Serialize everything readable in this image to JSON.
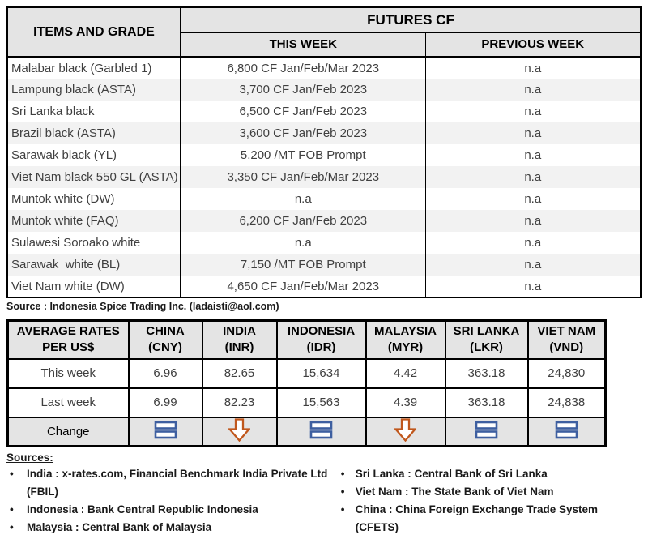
{
  "futures_table": {
    "items_header": "ITEMS AND GRADE",
    "group_header": "FUTURES CF",
    "subheaders": {
      "this_week": "THIS WEEK",
      "previous_week": "PREVIOUS WEEK"
    },
    "rows": [
      {
        "item": "Malabar black (Garbled 1)",
        "this_week": "6,800 CF Jan/Feb/Mar 2023",
        "previous_week": "n.a"
      },
      {
        "item": "Lampung black (ASTA)",
        "this_week": "3,700 CF Jan/Feb 2023",
        "previous_week": "n.a"
      },
      {
        "item": "Sri Lanka black",
        "this_week": "6,500 CF Jan/Feb 2023",
        "previous_week": "n.a"
      },
      {
        "item": "Brazil black (ASTA)",
        "this_week": "3,600 CF Jan/Feb 2023",
        "previous_week": "n.a"
      },
      {
        "item": "Sarawak black (YL)",
        "this_week": "5,200 /MT FOB Prompt",
        "previous_week": "n.a"
      },
      {
        "item": "Viet Nam black 550 GL (ASTA)",
        "this_week": "3,350 CF Jan/Feb/Mar 2023",
        "previous_week": "n.a"
      },
      {
        "item": "Muntok white (DW)",
        "this_week": "n.a",
        "previous_week": "n.a"
      },
      {
        "item": "Muntok white (FAQ)",
        "this_week": "6,200 CF Jan/Feb 2023",
        "previous_week": "n.a"
      },
      {
        "item": "Sulawesi Soroako white",
        "this_week": "n.a",
        "previous_week": "n.a"
      },
      {
        "item": "Sarawak  white (BL)",
        "this_week": "7,150 /MT FOB Prompt",
        "previous_week": "n.a"
      },
      {
        "item": "Viet Nam white (DW)",
        "this_week": "4,650 CF Jan/Feb/Mar 2023",
        "previous_week": "n.a"
      }
    ],
    "source": "Source : Indonesia Spice Trading Inc. (ladaisti@aol.com)"
  },
  "rates_table": {
    "row_header": {
      "line1": "AVERAGE RATES",
      "line2": "PER US$"
    },
    "columns": [
      {
        "name": "CHINA",
        "code": "(CNY)"
      },
      {
        "name": "INDIA",
        "code": "(INR)"
      },
      {
        "name": "INDONESIA",
        "code": "(IDR)"
      },
      {
        "name": "MALAYSIA",
        "code": "(MYR)"
      },
      {
        "name": "SRI LANKA",
        "code": "(LKR)"
      },
      {
        "name": "VIET NAM",
        "code": "(VND)"
      }
    ],
    "row_labels": {
      "this_week": "This week",
      "last_week": "Last week",
      "change": "Change"
    },
    "this_week": [
      "6.96",
      "82.65",
      "15,634",
      "4.42",
      "363.18",
      "24,830"
    ],
    "last_week": [
      "6.99",
      "82.23",
      "15,563",
      "4.39",
      "363.18",
      "24,838"
    ],
    "change": [
      "equal",
      "down",
      "equal",
      "down",
      "equal",
      "equal"
    ]
  },
  "sources": {
    "title": "Sources:",
    "left": [
      "India : x-rates.com, Financial Benchmark India Private Ltd (FBIL)",
      "Indonesia : Bank Central Republic Indonesia",
      "Malaysia : Central Bank of Malaysia"
    ],
    "right": [
      "Sri Lanka : Central Bank of Sri Lanka",
      "Viet Nam : The State Bank of Viet Nam",
      "China : China Foreign Exchange Trade System (CFETS)"
    ]
  },
  "colors": {
    "accent_blue": "#3e5fa0",
    "accent_orange": "#c0571c",
    "header_gray": "#e4e4e4",
    "row_alt_gray": "#f2f2f2"
  }
}
